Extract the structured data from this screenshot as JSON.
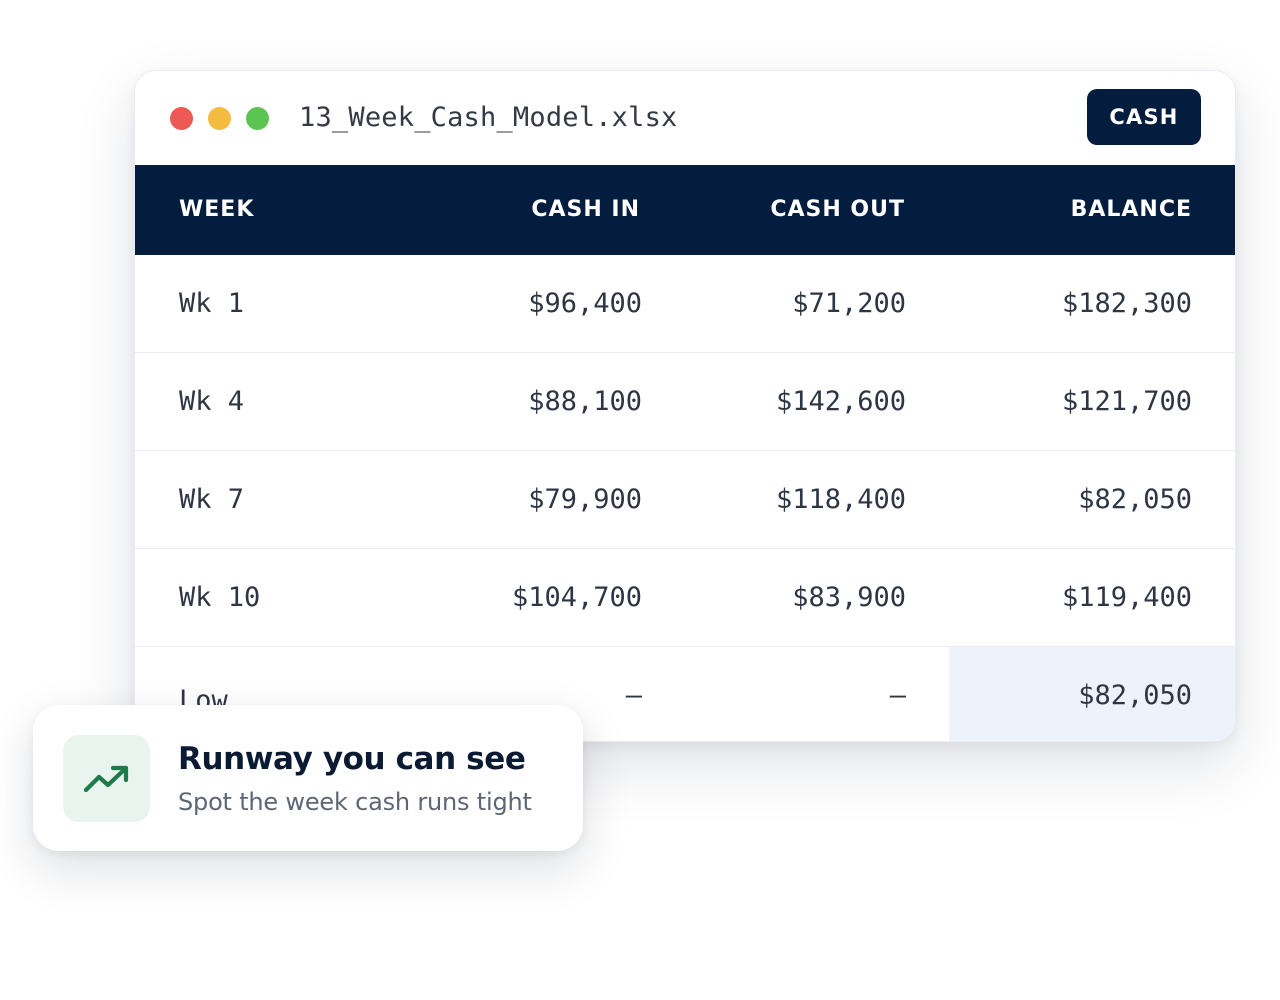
{
  "window": {
    "filename": "13_Week_Cash_Model.xlsx",
    "badge": "CASH",
    "traffic_lights": {
      "close_color": "#ed5a56",
      "minimize_color": "#f4bb41",
      "maximize_color": "#5cc453"
    }
  },
  "table": {
    "headers": {
      "week": "WEEK",
      "cash_in": "CASH IN",
      "cash_out": "CASH OUT",
      "balance": "BALANCE"
    },
    "rows": [
      {
        "week": "Wk 1",
        "cash_in": "$96,400",
        "cash_out": "$71,200",
        "balance": "$182,300"
      },
      {
        "week": "Wk 4",
        "cash_in": "$88,100",
        "cash_out": "$142,600",
        "balance": "$121,700"
      },
      {
        "week": "Wk 7",
        "cash_in": "$79,900",
        "cash_out": "$118,400",
        "balance": "$82,050"
      },
      {
        "week": "Wk 10",
        "cash_in": "$104,700",
        "cash_out": "$83,900",
        "balance": "$119,400"
      }
    ],
    "summary": {
      "week": "Low",
      "cash_in": "–",
      "cash_out": "–",
      "balance": "$82,050"
    },
    "header_color": "#041d3f",
    "highlight_color": "#edf2fb"
  },
  "card": {
    "icon": "trending-up-icon",
    "icon_color": "#1f7a4a",
    "title": "Runway you can see",
    "subtitle": "Spot the week cash runs tight"
  }
}
